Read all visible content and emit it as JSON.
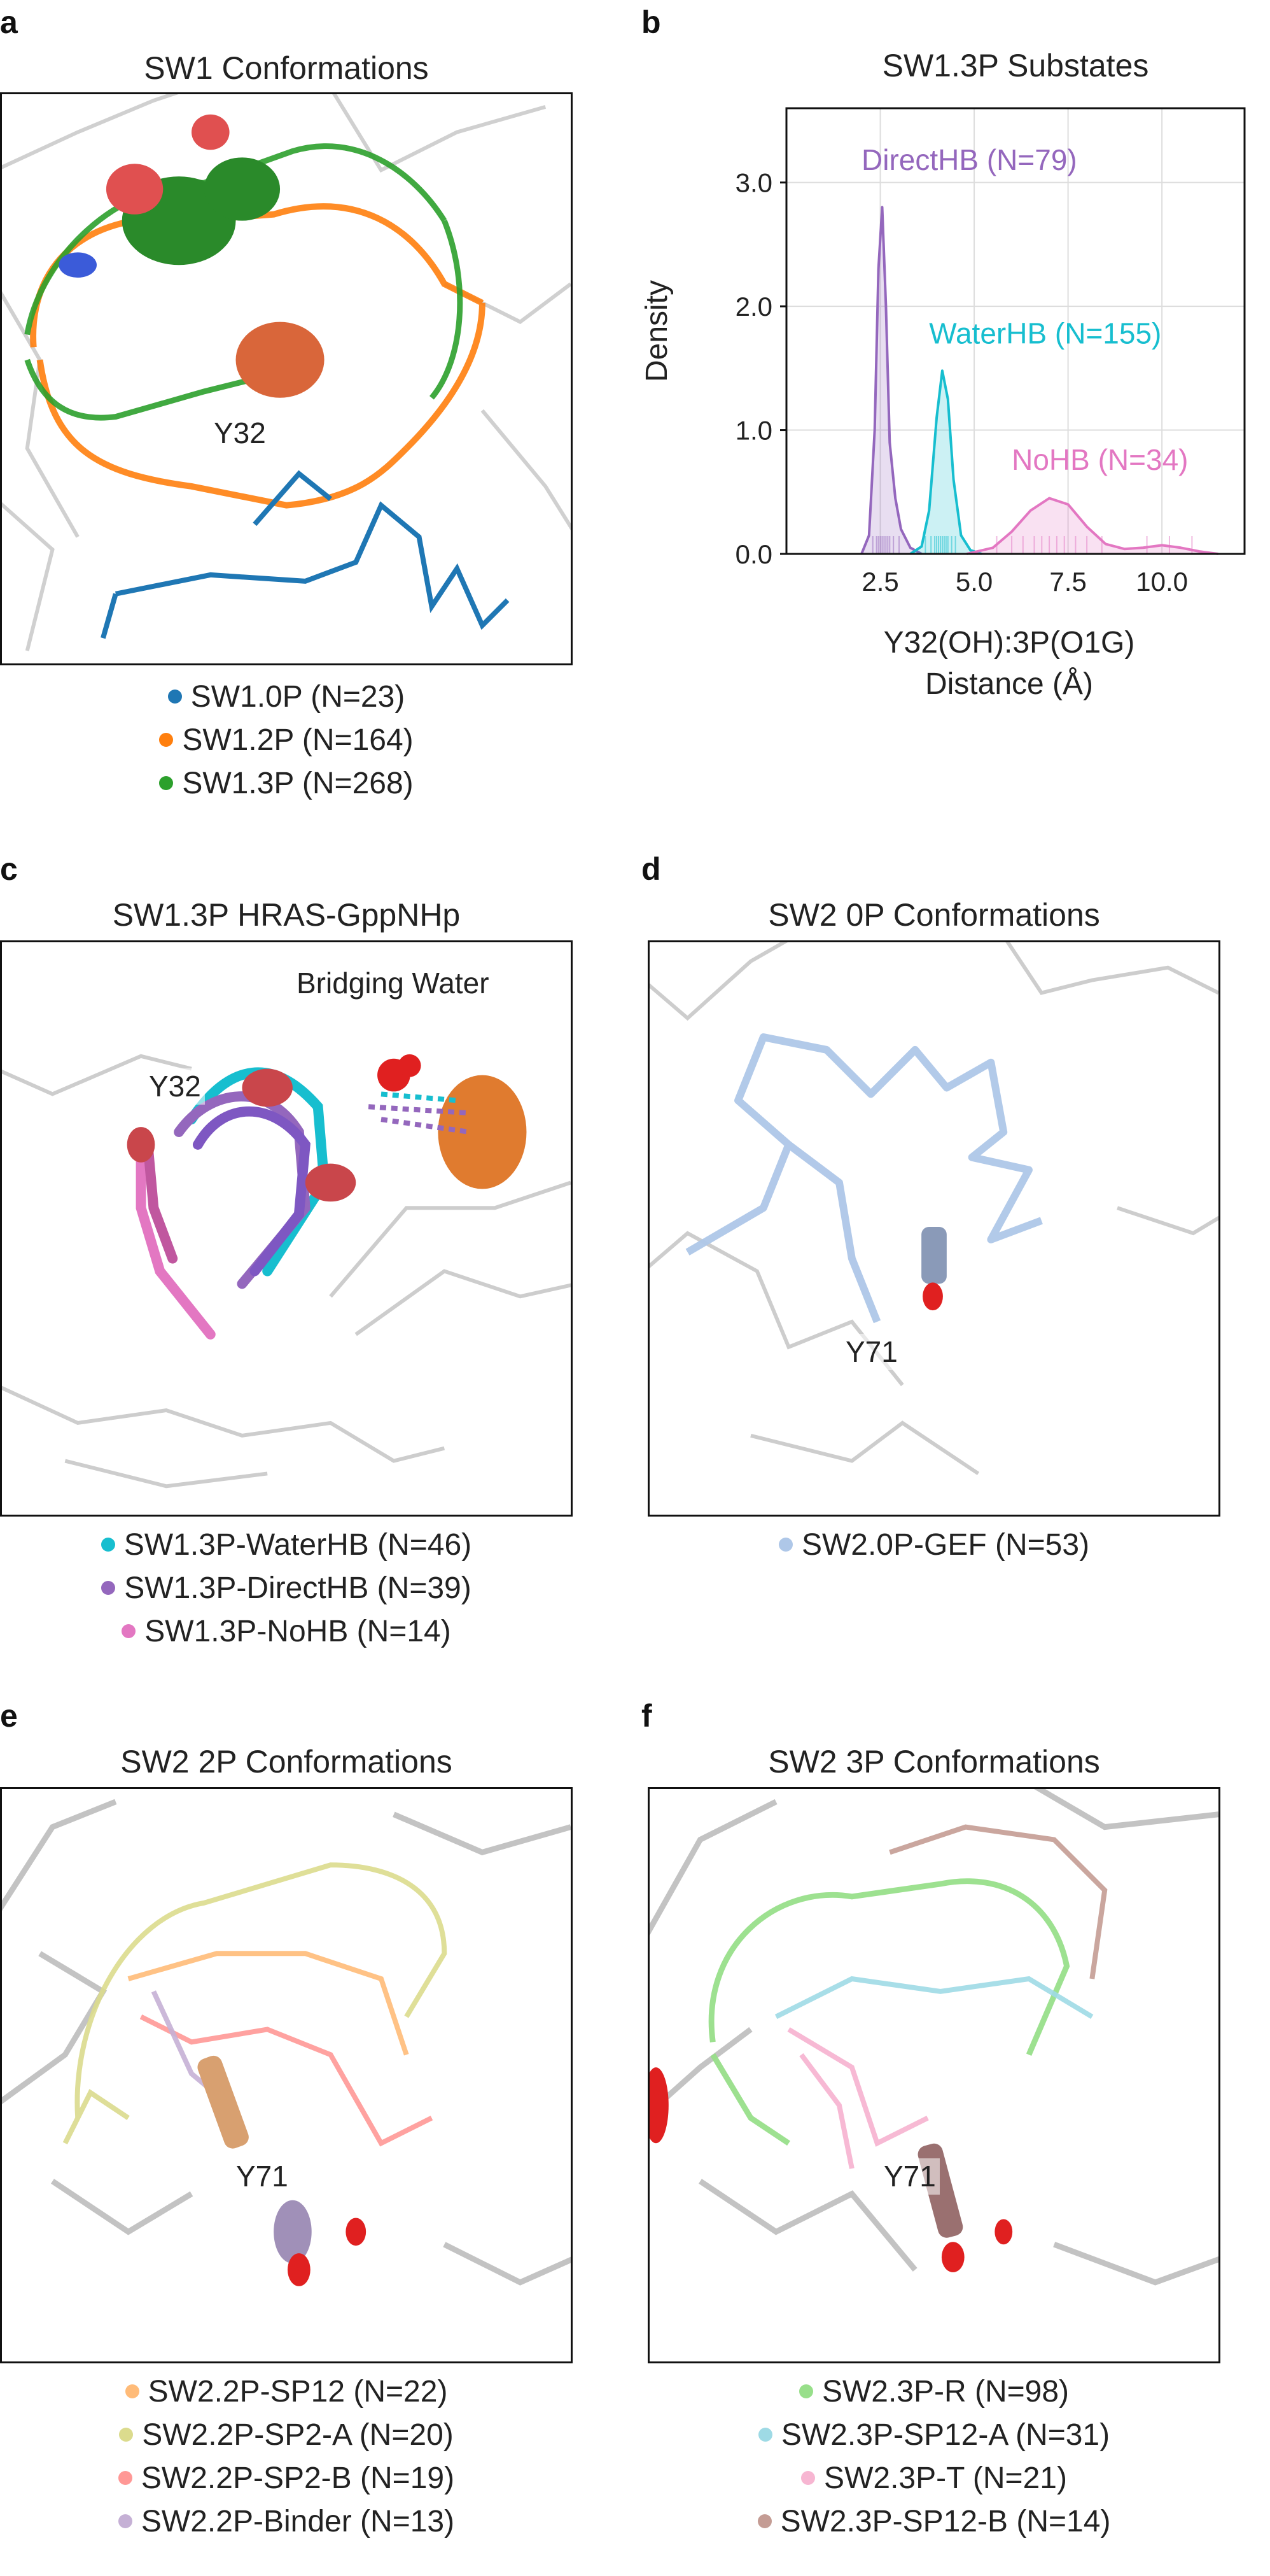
{
  "panels": {
    "a": {
      "label": "a",
      "title": "SW1 Conformations",
      "callout": "Y32",
      "legend": [
        {
          "label": "SW1.0P (N=23)",
          "color": "#1f77b4"
        },
        {
          "label": "SW1.2P (N=164)",
          "color": "#ff7f0e"
        },
        {
          "label": "SW1.3P (N=268)",
          "color": "#2ca02c"
        }
      ]
    },
    "b": {
      "label": "b"
    },
    "c": {
      "label": "c",
      "title": "SW1.3P HRAS-GppNHp",
      "callouts": [
        "Bridging Water",
        "Y32"
      ],
      "legend": [
        {
          "label": "SW1.3P-WaterHB (N=46)",
          "color": "#17becf"
        },
        {
          "label": "SW1.3P-DirectHB (N=39)",
          "color": "#9467bd"
        },
        {
          "label": "SW1.3P-NoHB (N=14)",
          "color": "#e377c2"
        }
      ]
    },
    "d": {
      "label": "d",
      "title": "SW2 0P Conformations",
      "callout": "Y71",
      "legend": [
        {
          "label": "SW2.0P-GEF (N=53)",
          "color": "#aec7e8"
        }
      ]
    },
    "e": {
      "label": "e",
      "title": "SW2 2P Conformations",
      "callout": "Y71",
      "legend": [
        {
          "label": "SW2.2P-SP12 (N=22)",
          "color": "#ffbb78"
        },
        {
          "label": "SW2.2P-SP2-A (N=20)",
          "color": "#dbdb8d"
        },
        {
          "label": "SW2.2P-SP2-B (N=19)",
          "color": "#ff9896"
        },
        {
          "label": "SW2.2P-Binder (N=13)",
          "color": "#c5b0d5"
        }
      ]
    },
    "f": {
      "label": "f",
      "title": "SW2 3P Conformations",
      "callout": "Y71",
      "legend": [
        {
          "label": "SW2.3P-R (N=98)",
          "color": "#98df8a"
        },
        {
          "label": "SW2.3P-SP12-A (N=31)",
          "color": "#9edae5"
        },
        {
          "label": "SW2.3P-T (N=21)",
          "color": "#f7b6d2"
        },
        {
          "label": "SW2.3P-SP12-B (N=14)",
          "color": "#c49c94"
        }
      ]
    }
  },
  "chart_data": {
    "type": "area",
    "title": "SW1.3P Substates",
    "xlabel_lines": [
      "Y32(OH):3P(O1G)",
      "Distance (Å)"
    ],
    "ylabel": "Density",
    "xlim": [
      0,
      12.2
    ],
    "ylim": [
      0,
      3.6
    ],
    "xticks": [
      2.5,
      5.0,
      7.5,
      10.0
    ],
    "xtick_labels": [
      "2.5",
      "5.0",
      "7.5",
      "10.0"
    ],
    "yticks": [
      0,
      1,
      2,
      3
    ],
    "ytick_labels": [
      "0.0",
      "1.0",
      "2.0",
      "3.0"
    ],
    "grid": true,
    "series": [
      {
        "name": "DirectHB (N=79)",
        "color": "#9467bd",
        "x": [
          2.0,
          2.2,
          2.35,
          2.45,
          2.55,
          2.65,
          2.75,
          2.9,
          3.05,
          3.3,
          3.6
        ],
        "y": [
          0,
          0.15,
          1.0,
          2.3,
          2.8,
          2.0,
          0.9,
          0.45,
          0.2,
          0.05,
          0
        ],
        "rug": [
          2.3,
          2.4,
          2.45,
          2.5,
          2.55,
          2.6,
          2.65,
          2.7,
          2.75,
          2.85,
          3.0
        ]
      },
      {
        "name": "WaterHB (N=155)",
        "color": "#17becf",
        "x": [
          3.3,
          3.6,
          3.8,
          4.0,
          4.15,
          4.3,
          4.45,
          4.65,
          4.9,
          5.2
        ],
        "y": [
          0,
          0.06,
          0.35,
          1.1,
          1.48,
          1.25,
          0.6,
          0.15,
          0.03,
          0
        ],
        "rug": [
          3.7,
          3.85,
          3.95,
          4.0,
          4.05,
          4.1,
          4.15,
          4.2,
          4.25,
          4.3,
          4.4,
          4.5
        ]
      },
      {
        "name": "NoHB (N=34)",
        "color": "#e377c2",
        "x": [
          4.8,
          5.5,
          6.0,
          6.5,
          7.0,
          7.5,
          8.0,
          8.5,
          9.0,
          9.5,
          10.0,
          10.5,
          11.0,
          11.5
        ],
        "y": [
          0,
          0.05,
          0.18,
          0.35,
          0.45,
          0.4,
          0.22,
          0.08,
          0.04,
          0.05,
          0.07,
          0.05,
          0.02,
          0
        ],
        "rug": [
          5.6,
          6.0,
          6.3,
          6.6,
          6.8,
          7.0,
          7.2,
          7.4,
          7.7,
          8.0,
          8.4,
          9.6,
          10.2,
          10.8
        ]
      }
    ],
    "annotations": [
      {
        "text": "DirectHB (N=79)",
        "color": "#9467bd",
        "x": 2.0,
        "y": 3.1
      },
      {
        "text": "WaterHB (N=155)",
        "color": "#17becf",
        "x": 3.8,
        "y": 1.7
      },
      {
        "text": "NoHB (N=34)",
        "color": "#e377c2",
        "x": 6.0,
        "y": 0.68
      }
    ]
  }
}
